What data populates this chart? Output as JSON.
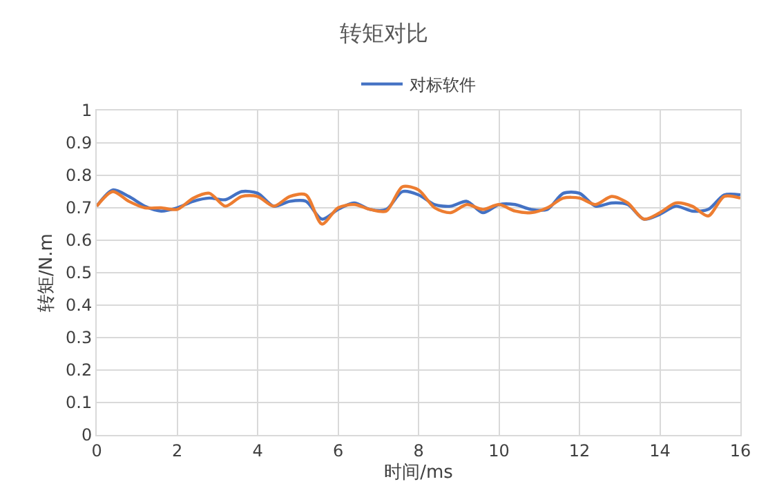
{
  "chart_data": {
    "type": "line",
    "title": "转矩对比",
    "xlabel": "时间/ms",
    "ylabel": "转矩/N.m",
    "x": [
      0,
      0.4,
      0.8,
      1.2,
      1.6,
      2.0,
      2.4,
      2.8,
      3.2,
      3.6,
      4.0,
      4.4,
      4.8,
      5.2,
      5.6,
      6.0,
      6.4,
      6.8,
      7.2,
      7.6,
      8.0,
      8.4,
      8.8,
      9.2,
      9.6,
      10.0,
      10.4,
      10.8,
      11.2,
      11.6,
      12.0,
      12.4,
      12.8,
      13.2,
      13.6,
      14.0,
      14.4,
      14.8,
      15.2,
      15.6,
      16.0
    ],
    "series": [
      {
        "name": "对标软件",
        "color": "#4472c4",
        "values": [
          0.705,
          0.755,
          0.735,
          0.705,
          0.69,
          0.7,
          0.72,
          0.73,
          0.725,
          0.75,
          0.745,
          0.705,
          0.72,
          0.72,
          0.665,
          0.695,
          0.715,
          0.695,
          0.695,
          0.75,
          0.74,
          0.71,
          0.705,
          0.72,
          0.685,
          0.71,
          0.71,
          0.695,
          0.695,
          0.745,
          0.745,
          0.705,
          0.715,
          0.71,
          0.665,
          0.68,
          0.705,
          0.69,
          0.695,
          0.74,
          0.74
        ]
      },
      {
        "color": "#ed7d31",
        "values": [
          0.705,
          0.75,
          0.72,
          0.7,
          0.7,
          0.695,
          0.73,
          0.745,
          0.705,
          0.735,
          0.735,
          0.705,
          0.735,
          0.74,
          0.65,
          0.7,
          0.71,
          0.695,
          0.69,
          0.765,
          0.755,
          0.7,
          0.685,
          0.71,
          0.695,
          0.71,
          0.69,
          0.685,
          0.7,
          0.73,
          0.73,
          0.71,
          0.735,
          0.715,
          0.665,
          0.685,
          0.715,
          0.705,
          0.675,
          0.735,
          0.73
        ]
      }
    ],
    "xlim": [
      0,
      16
    ],
    "xticks": [
      0,
      2,
      4,
      6,
      8,
      10,
      12,
      14,
      16
    ],
    "ylim": [
      0,
      1
    ],
    "yticks": [
      0,
      0.1,
      0.2,
      0.3,
      0.4,
      0.5,
      0.6,
      0.7,
      0.8,
      0.9,
      1
    ],
    "grid": true,
    "legend": "top",
    "marker": "none",
    "line_style": "solid"
  }
}
